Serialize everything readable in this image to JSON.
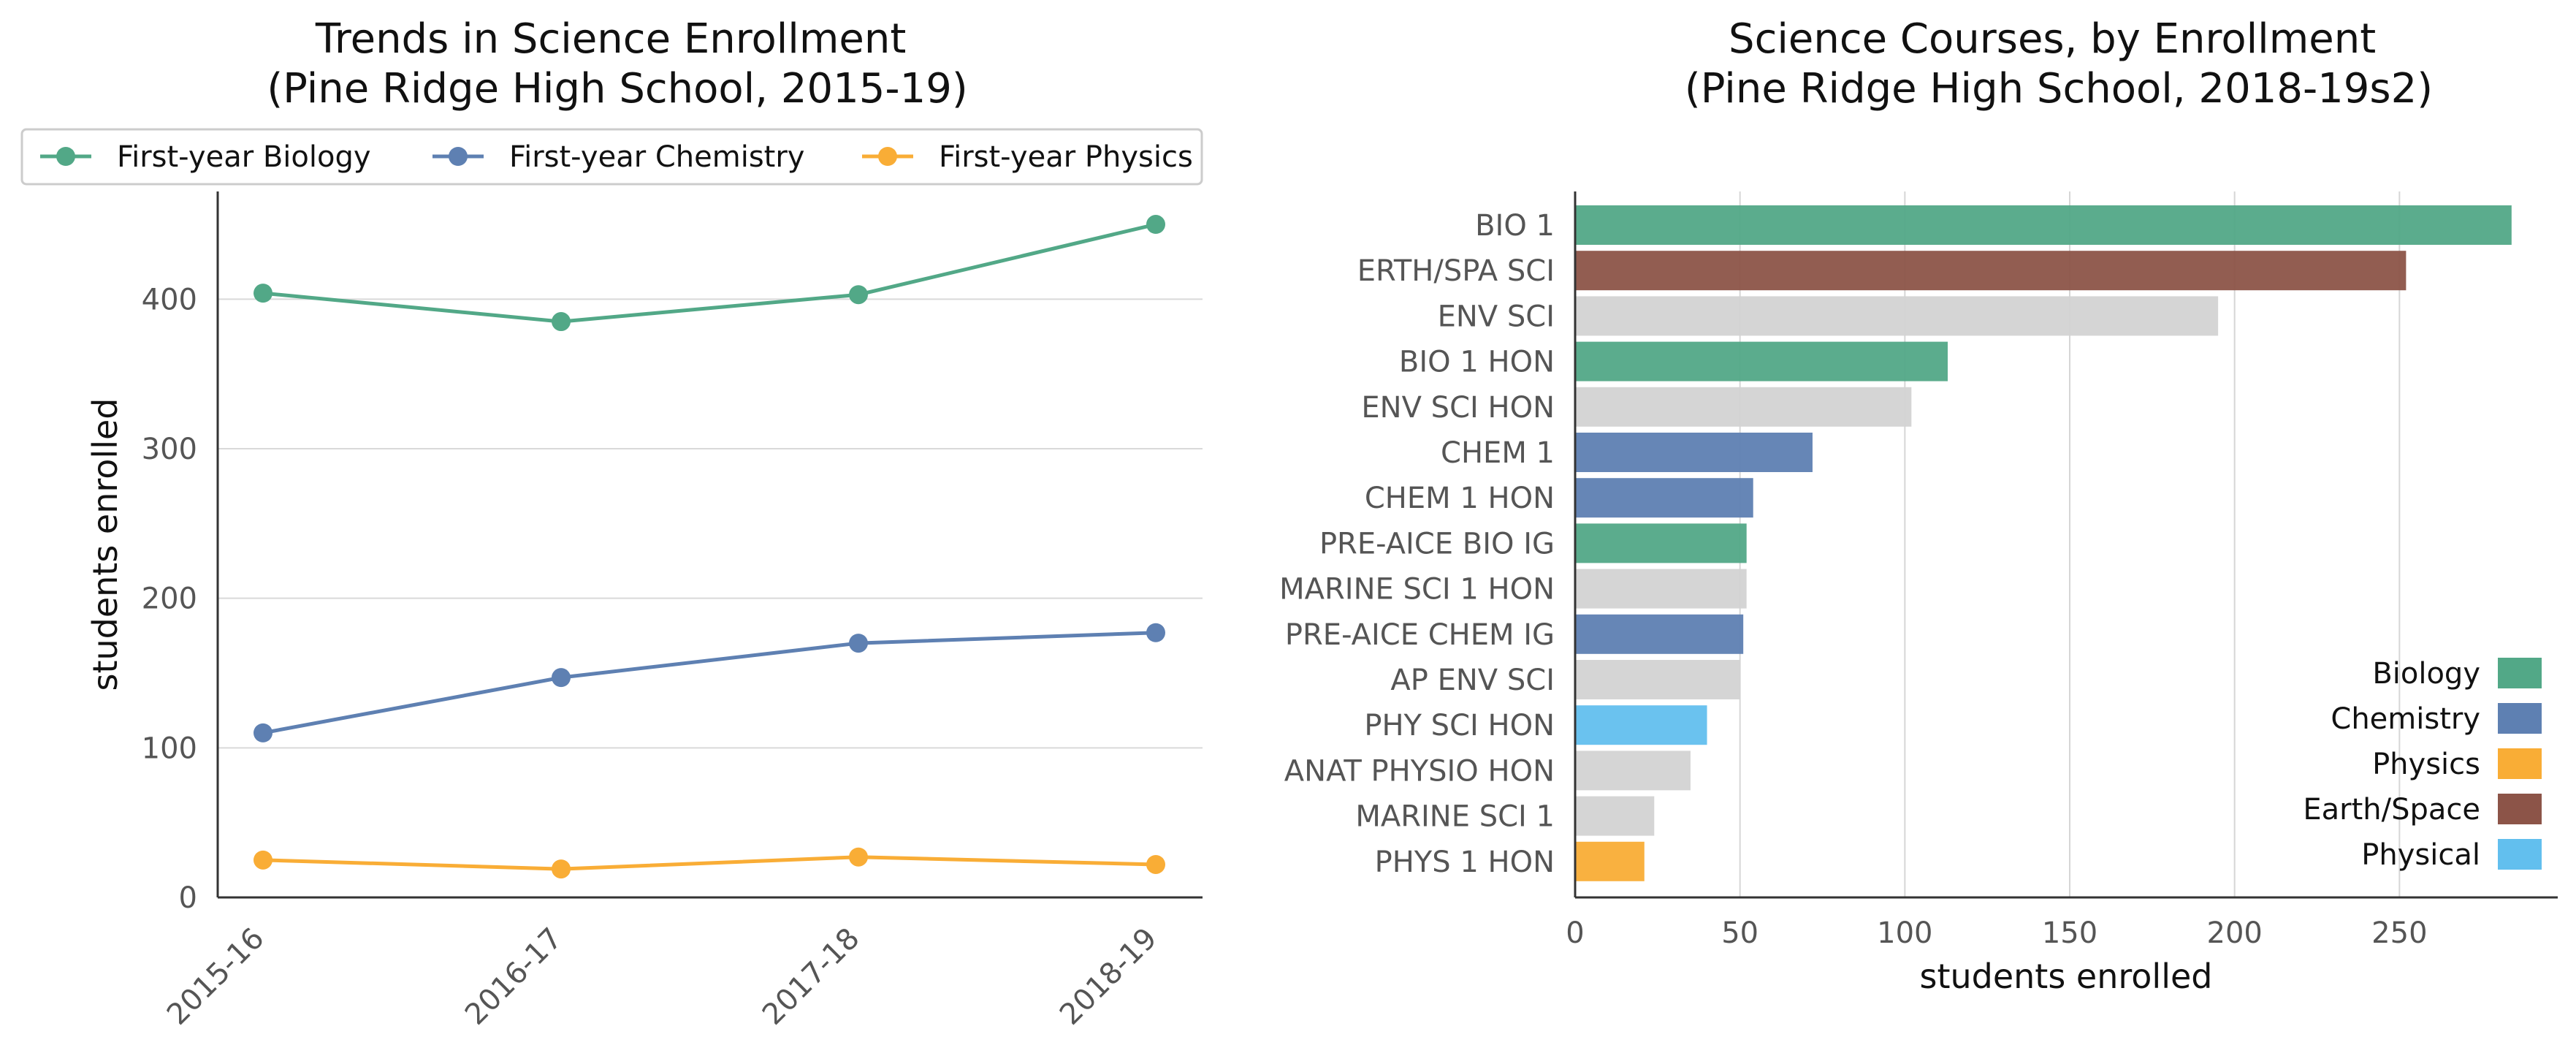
{
  "colors": {
    "biology": "#52a887",
    "chemistry": "#5e80b2",
    "physics": "#f9ad36",
    "earth_space": "#8c5448",
    "physical": "#62bfee",
    "other": "#d3d3d3"
  },
  "chart_data": [
    {
      "type": "line",
      "title": "Trends in Science Enrollment\n(Pine Ridge High School, 2015-19)",
      "xlabel": "",
      "ylabel": "students enrolled",
      "x": [
        "2015-16",
        "2016-17",
        "2017-18",
        "2018-19"
      ],
      "y_ticks": [
        "0",
        "100",
        "200",
        "300",
        "400"
      ],
      "ylim": [
        0,
        472
      ],
      "grid": "horizontal",
      "legend": "top",
      "series": [
        {
          "name": "First-year Biology",
          "color_key": "biology",
          "values": [
            404,
            385,
            403,
            450
          ]
        },
        {
          "name": "First-year Chemistry",
          "color_key": "chemistry",
          "values": [
            110,
            147,
            170,
            177
          ]
        },
        {
          "name": "First-year Physics",
          "color_key": "physics",
          "values": [
            25,
            19,
            27,
            22
          ]
        }
      ]
    },
    {
      "type": "bar",
      "orientation": "horizontal",
      "title": "Science Courses, by Enrollment\n(Pine Ridge High School, 2018-19s2)",
      "xlabel": "students enrolled",
      "ylabel": "",
      "x_ticks": [
        "0",
        "50",
        "100",
        "150",
        "200",
        "250"
      ],
      "xlim": [
        0,
        298
      ],
      "grid": "vertical",
      "legend": "bottom-right",
      "categories": [
        "BIO 1",
        "ERTH/SPA SCI",
        "ENV SCI",
        "BIO 1 HON",
        "ENV SCI HON",
        "CHEM 1",
        "CHEM 1 HON",
        "PRE-AICE BIO IG",
        "MARINE SCI 1 HON",
        "PRE-AICE CHEM IG",
        "AP ENV SCI",
        "PHY SCI HON",
        "ANAT PHYSIO HON",
        "MARINE SCI 1",
        "PHYS 1 HON"
      ],
      "values": [
        284,
        252,
        195,
        113,
        102,
        72,
        54,
        52,
        52,
        51,
        50,
        40,
        35,
        24,
        21
      ],
      "groups": [
        "biology",
        "earth_space",
        "other",
        "biology",
        "other",
        "chemistry",
        "chemistry",
        "biology",
        "other",
        "chemistry",
        "other",
        "physical",
        "other",
        "other",
        "physics"
      ],
      "legend_entries": [
        {
          "label": "Biology",
          "color_key": "biology"
        },
        {
          "label": "Chemistry",
          "color_key": "chemistry"
        },
        {
          "label": "Physics",
          "color_key": "physics"
        },
        {
          "label": "Earth/Space",
          "color_key": "earth_space"
        },
        {
          "label": "Physical",
          "color_key": "physical"
        }
      ]
    }
  ]
}
